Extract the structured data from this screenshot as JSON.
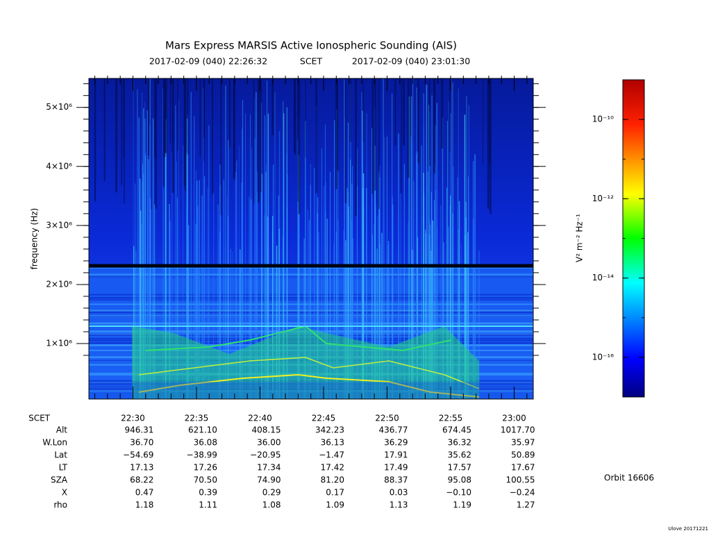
{
  "chart_data": {
    "type": "spectrogram",
    "title": "Mars Express MARSIS Active Ionospheric Sounding (AIS)",
    "subtitle_start": "2017-02-09 (040) 22:26:32",
    "subtitle_mid": "SCET",
    "subtitle_end": "2017-02-09 (040) 23:01:30",
    "y_label": "frequency (Hz)",
    "ylim": [
      60000,
      5490000
    ],
    "yticks": [
      {
        "value": 1000000,
        "label": "1×10⁶"
      },
      {
        "value": 2000000,
        "label": "2×10⁶"
      },
      {
        "value": 3000000,
        "label": "3×10⁶"
      },
      {
        "value": 4000000,
        "label": "4×10⁶"
      },
      {
        "value": 5000000,
        "label": "5×10⁶"
      }
    ],
    "x_label": "SCET",
    "xlim": [
      "22:26:32",
      "23:01:30"
    ],
    "xticks": [
      "22:30",
      "22:35",
      "22:40",
      "22:45",
      "22:50",
      "22:55",
      "23:00"
    ],
    "ephemeris": [
      {
        "label": "Alt",
        "values": [
          "946.31",
          "621.10",
          "408.15",
          "342.23",
          "436.77",
          "674.45",
          "1017.70"
        ]
      },
      {
        "label": "W.Lon",
        "values": [
          "36.70",
          "36.08",
          "36.00",
          "36.13",
          "36.29",
          "36.32",
          "35.97"
        ]
      },
      {
        "label": "Lat",
        "values": [
          "−54.69",
          "−38.99",
          "−20.95",
          "−1.47",
          "17.91",
          "35.62",
          "50.89"
        ]
      },
      {
        "label": "LT",
        "values": [
          "17.13",
          "17.26",
          "17.34",
          "17.42",
          "17.49",
          "17.57",
          "17.67"
        ]
      },
      {
        "label": "SZA",
        "values": [
          "68.22",
          "70.50",
          "74.90",
          "81.20",
          "88.37",
          "95.08",
          "100.55"
        ]
      },
      {
        "label": "X",
        "values": [
          "0.47",
          "0.39",
          "0.29",
          "0.17",
          "0.03",
          "−0.10",
          "−0.24"
        ]
      },
      {
        "label": "rho",
        "values": [
          "1.18",
          "1.11",
          "1.08",
          "1.09",
          "1.13",
          "1.19",
          "1.27"
        ]
      }
    ],
    "z_label": "V² m⁻² Hz⁻¹",
    "zlim": [
      1e-17,
      1e-09
    ],
    "zlog": true,
    "zticks": [
      {
        "value": 1e-16,
        "label": "10⁻¹⁶"
      },
      {
        "value": 1e-14,
        "label": "10⁻¹⁴"
      },
      {
        "value": 1e-12,
        "label": "10⁻¹²"
      },
      {
        "value": 1e-10,
        "label": "10⁻¹⁰"
      }
    ],
    "orbit": "Orbit 16606",
    "footer": "Ulove 20171221"
  }
}
